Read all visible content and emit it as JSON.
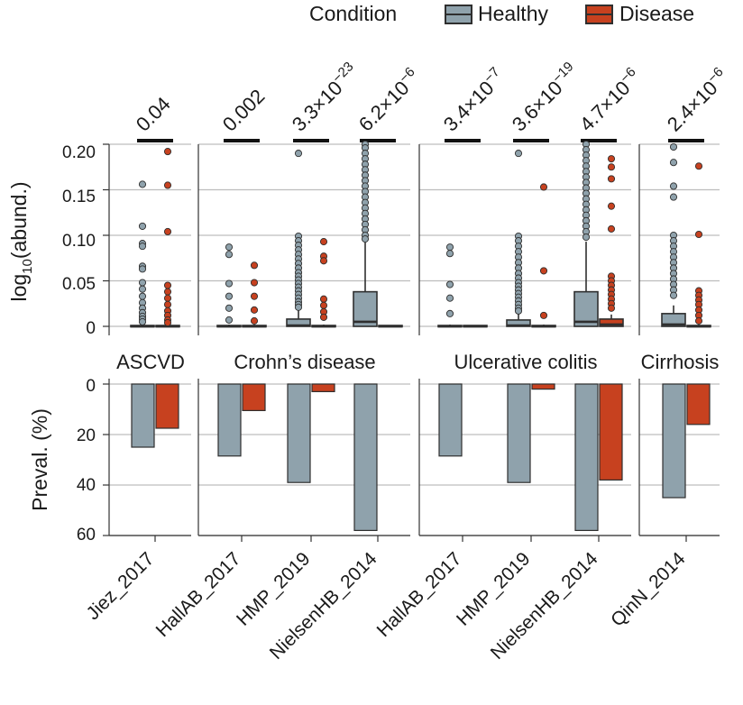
{
  "legend": {
    "title": "Condition",
    "healthy": "Healthy",
    "disease": "Disease"
  },
  "colors": {
    "healthy": "#8fa2ac",
    "disease": "#c7411f",
    "edge": "#2f2f2f",
    "grid": "#bdbdbd"
  },
  "top_axis": {
    "label_main": "log",
    "label_sub": "10",
    "label_tail": "(abund.)",
    "ticks": [
      "0",
      "0.05",
      "0.10",
      "0.15",
      "0.20"
    ],
    "ylim": [
      0,
      0.2
    ]
  },
  "bottom_axis": {
    "label": "Preval. (%)",
    "ticks": [
      "0",
      "20",
      "40",
      "60"
    ],
    "ylim": [
      0,
      60
    ]
  },
  "chart_data": {
    "type": "bar",
    "title": "",
    "panels": [
      {
        "name": "ASCVD",
        "studies": [
          "Jiez_2017"
        ]
      },
      {
        "name": "Crohn’s disease",
        "studies": [
          "HallAB_2017",
          "HMP_2019",
          "NielsenHB_2014"
        ]
      },
      {
        "name": "Ulcerative colitis",
        "studies": [
          "HallAB_2017",
          "HMP_2019",
          "NielsenHB_2014"
        ]
      },
      {
        "name": "Cirrhosis",
        "studies": [
          "QinN_2014"
        ]
      }
    ],
    "categories": [
      "Jiez_2017",
      "HallAB_2017",
      "HMP_2019",
      "NielsenHB_2014",
      "HallAB_2017",
      "HMP_2019",
      "NielsenHB_2014",
      "QinN_2014"
    ],
    "pvalues": [
      {
        "mantissa": "0.04",
        "exp": ""
      },
      {
        "mantissa": "0.002",
        "exp": ""
      },
      {
        "mantissa": "3.3×10",
        "exp": "−23"
      },
      {
        "mantissa": "6.2×10",
        "exp": "−6"
      },
      {
        "mantissa": "3.4×10",
        "exp": "−7"
      },
      {
        "mantissa": "3.6×10",
        "exp": "−19"
      },
      {
        "mantissa": "4.7×10",
        "exp": "−6"
      },
      {
        "mantissa": "2.4×10",
        "exp": "−6"
      }
    ],
    "prevalence": {
      "ylabel": "Preval. (%)",
      "ylim": [
        0,
        60
      ],
      "series": [
        {
          "name": "Healthy",
          "values": [
            25,
            28.5,
            39,
            58,
            28.5,
            39,
            58,
            45
          ]
        },
        {
          "name": "Disease",
          "values": [
            17.5,
            10.5,
            3,
            0,
            0,
            2,
            38,
            16
          ]
        }
      ]
    },
    "abundance": {
      "ylabel": "log10(abund.)",
      "ylim": [
        0,
        0.2
      ],
      "healthy": [
        {
          "q1": 0,
          "median": 0,
          "q3": 0.001,
          "whisker": 0.002,
          "outliers": [
            0.156,
            0.11,
            0.091,
            0.088,
            0.066,
            0.063,
            0.048,
            0.041,
            0.033,
            0.026,
            0.02,
            0.015,
            0.011,
            0.008,
            0.005
          ]
        },
        {
          "q1": 0,
          "median": 0,
          "q3": 0.001,
          "whisker": 0.002,
          "outliers": [
            0.087,
            0.079,
            0.047,
            0.033,
            0.02,
            0.007
          ]
        },
        {
          "q1": 0,
          "median": 0.001,
          "q3": 0.008,
          "whisker": 0.018,
          "outliers": [
            0.19,
            0.099,
            0.094,
            0.089,
            0.084,
            0.079,
            0.074,
            0.069,
            0.064,
            0.059,
            0.055,
            0.051,
            0.047,
            0.043,
            0.039,
            0.035,
            0.031,
            0.027,
            0.024,
            0.021
          ]
        },
        {
          "q1": 0,
          "median": 0.005,
          "q3": 0.038,
          "whisker": 0.093,
          "outliers": [
            0.2,
            0.196,
            0.19,
            0.184,
            0.178,
            0.172,
            0.166,
            0.16,
            0.154,
            0.148,
            0.142,
            0.136,
            0.13,
            0.124,
            0.118,
            0.112,
            0.106,
            0.1,
            0.096
          ]
        },
        {
          "q1": 0,
          "median": 0,
          "q3": 0.001,
          "whisker": 0.002,
          "outliers": [
            0.087,
            0.08,
            0.046,
            0.031,
            0.014
          ]
        },
        {
          "q1": 0,
          "median": 0.001,
          "q3": 0.007,
          "whisker": 0.015,
          "outliers": [
            0.19,
            0.099,
            0.094,
            0.088,
            0.082,
            0.076,
            0.07,
            0.064,
            0.058,
            0.053,
            0.048,
            0.044,
            0.04,
            0.036,
            0.032,
            0.028,
            0.024,
            0.02,
            0.017
          ]
        },
        {
          "q1": 0,
          "median": 0.005,
          "q3": 0.038,
          "whisker": 0.093,
          "outliers": [
            0.2,
            0.194,
            0.188,
            0.182,
            0.176,
            0.17,
            0.164,
            0.158,
            0.152,
            0.146,
            0.14,
            0.134,
            0.128,
            0.122,
            0.116,
            0.11,
            0.104,
            0.098
          ]
        },
        {
          "q1": 0,
          "median": 0.002,
          "q3": 0.014,
          "whisker": 0.023,
          "outliers": [
            0.197,
            0.18,
            0.154,
            0.142,
            0.1,
            0.094,
            0.088,
            0.082,
            0.076,
            0.07,
            0.064,
            0.058,
            0.052,
            0.046,
            0.04,
            0.034
          ]
        }
      ],
      "disease": [
        {
          "q1": 0,
          "median": 0,
          "q3": 0.001,
          "whisker": 0.002,
          "outliers": [
            0.192,
            0.155,
            0.104,
            0.045,
            0.038,
            0.031,
            0.024,
            0.017,
            0.012,
            0.007,
            0.004
          ]
        },
        {
          "q1": 0,
          "median": 0,
          "q3": 0.001,
          "whisker": 0.002,
          "outliers": [
            0.067,
            0.048,
            0.033,
            0.018,
            0.006
          ]
        },
        {
          "q1": 0,
          "median": 0,
          "q3": 0.001,
          "whisker": 0.002,
          "outliers": [
            0.093,
            0.077,
            0.072,
            0.03,
            0.023,
            0.016,
            0.01
          ]
        },
        {
          "q1": 0,
          "median": 0,
          "q3": 0.001,
          "whisker": 0.001,
          "outliers": []
        },
        {
          "q1": 0,
          "median": 0,
          "q3": 0.001,
          "whisker": 0.001,
          "outliers": []
        },
        {
          "q1": 0,
          "median": 0,
          "q3": 0.001,
          "whisker": 0.002,
          "outliers": [
            0.153,
            0.061,
            0.012
          ]
        },
        {
          "q1": 0,
          "median": 0.002,
          "q3": 0.008,
          "whisker": 0.013,
          "outliers": [
            0.184,
            0.175,
            0.162,
            0.132,
            0.107,
            0.055,
            0.05,
            0.045,
            0.04,
            0.035,
            0.03,
            0.025,
            0.02
          ]
        },
        {
          "q1": 0,
          "median": 0,
          "q3": 0.001,
          "whisker": 0.002,
          "outliers": [
            0.176,
            0.101,
            0.039,
            0.034,
            0.029,
            0.024,
            0.018,
            0.012,
            0.006
          ]
        }
      ]
    }
  }
}
